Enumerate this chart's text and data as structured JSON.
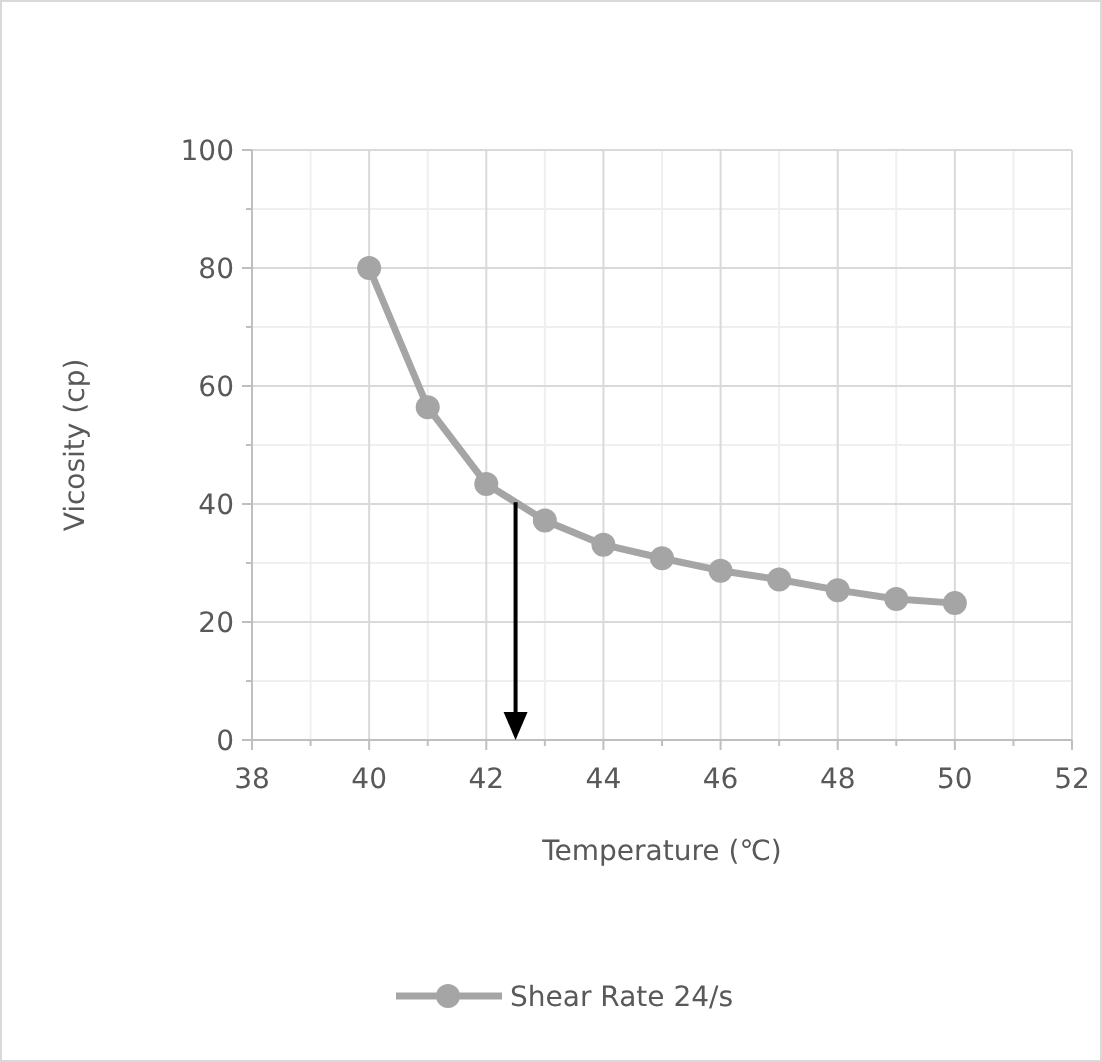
{
  "chart_data": {
    "type": "line",
    "xlabel": "Temperature (℃)",
    "ylabel": "Vicosity (cp)",
    "x": [
      40,
      41,
      42,
      43,
      44,
      45,
      46,
      47,
      48,
      49,
      50
    ],
    "series": [
      {
        "name": "Shear Rate 24/s",
        "color": "#a5a5a5",
        "values": [
          80,
          56.4,
          43.4,
          37.2,
          33.1,
          30.8,
          28.7,
          27.2,
          25.4,
          23.9,
          23.2
        ]
      }
    ],
    "xlim": [
      38,
      52
    ],
    "xticks": [
      38,
      40,
      42,
      44,
      46,
      48,
      50,
      52
    ],
    "ylim": [
      0,
      100
    ],
    "yticks": [
      0,
      20,
      40,
      60,
      80,
      100
    ],
    "grid": true,
    "legend": "bottom",
    "marker": "circle",
    "line_style": "solid",
    "ref_lines": [
      {
        "axis": "x",
        "value": 42.5,
        "color": "#000000"
      }
    ]
  }
}
